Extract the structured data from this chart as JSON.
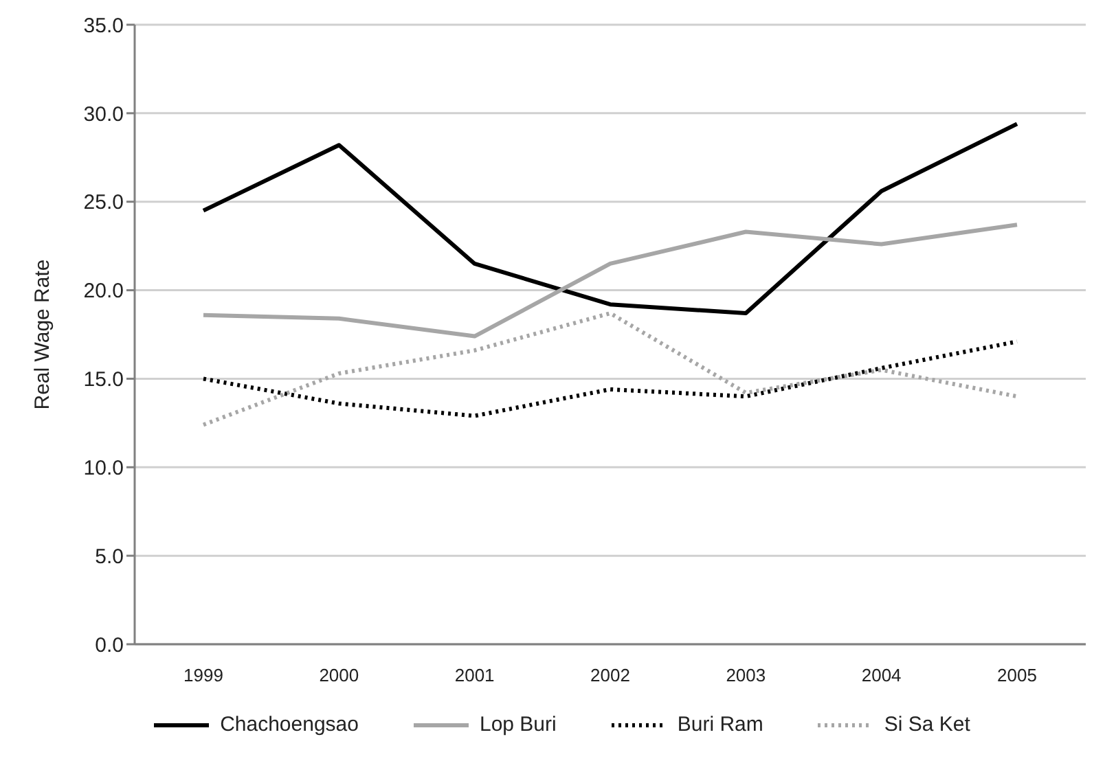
{
  "chart_data": {
    "type": "line",
    "ylabel": "Real Wage Rate",
    "categories": [
      "1999",
      "2000",
      "2001",
      "2002",
      "2003",
      "2004",
      "2005"
    ],
    "series": [
      {
        "name": "Chachoengsao",
        "color": "#000000",
        "line_style": "solid",
        "values": [
          24.5,
          28.2,
          21.5,
          19.2,
          18.7,
          25.6,
          29.4
        ]
      },
      {
        "name": "Lop Buri",
        "color": "#a6a6a6",
        "line_style": "solid",
        "values": [
          18.6,
          18.4,
          17.4,
          21.5,
          23.3,
          22.6,
          23.7
        ]
      },
      {
        "name": "Buri Ram",
        "color": "#000000",
        "line_style": "dotted",
        "values": [
          15.0,
          13.6,
          12.9,
          14.4,
          14.0,
          15.6,
          17.1
        ]
      },
      {
        "name": "Si Sa Ket",
        "color": "#a6a6a6",
        "line_style": "dotted",
        "values": [
          12.4,
          15.3,
          16.6,
          18.7,
          14.2,
          15.5,
          14.0
        ]
      }
    ],
    "ylim": [
      0,
      35
    ],
    "yticks": [
      {
        "value": 0,
        "label": "0.0"
      },
      {
        "value": 5,
        "label": "5.0"
      },
      {
        "value": 10,
        "label": "10.0"
      },
      {
        "value": 15,
        "label": "15.0"
      },
      {
        "value": 20,
        "label": "20.0"
      },
      {
        "value": 25,
        "label": "25.0"
      },
      {
        "value": 30,
        "label": "30.0"
      },
      {
        "value": 35,
        "label": "35.0"
      }
    ],
    "grid": "y",
    "legend": "bottom",
    "marker": "none"
  }
}
